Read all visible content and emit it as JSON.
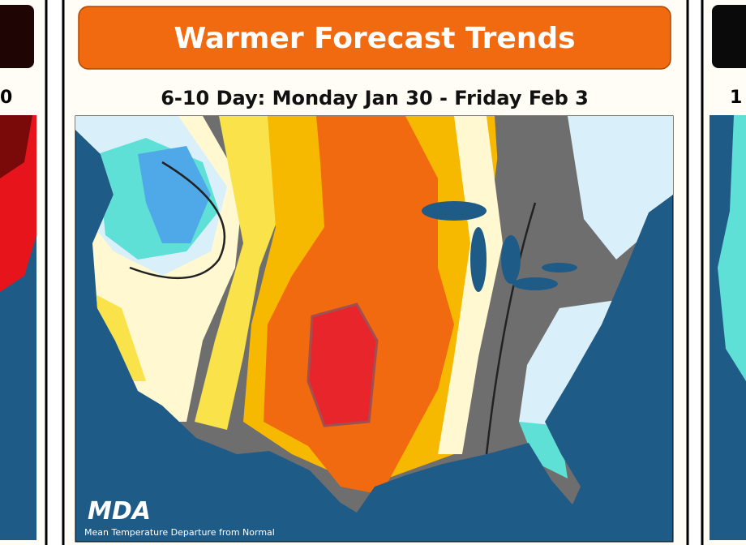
{
  "left_panel": {
    "subtitle": "0"
  },
  "center_panel": {
    "title": "Warmer Forecast Trends",
    "subtitle": "6-10 Day: Monday Jan 30 - Friday Feb 3",
    "logo": "MDA",
    "caption": "Mean Temperature Departure from Normal"
  },
  "right_panel": {
    "subtitle": "1"
  }
}
